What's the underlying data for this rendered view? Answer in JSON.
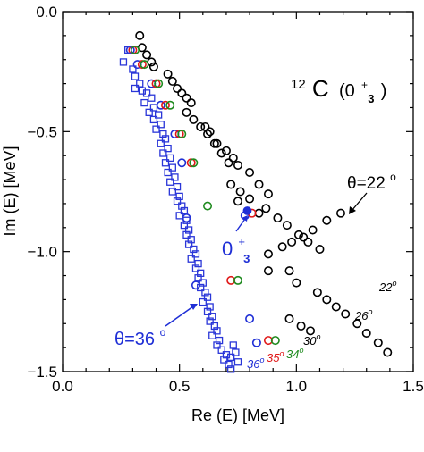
{
  "chart_data": {
    "type": "scatter",
    "title": "",
    "xlabel": "Re (E) [MeV]",
    "ylabel": "Im (E) [MeV]",
    "xlim": [
      0.0,
      1.5
    ],
    "ylim": [
      -1.5,
      0.0
    ],
    "x_ticks": [
      "0.0",
      "0.5",
      "1.0",
      "1.5"
    ],
    "y_ticks": [
      "0.0",
      "−0.5",
      "−1.0",
      "−1.5"
    ],
    "grid": false,
    "colors": {
      "black": "#000000",
      "blue": "#1f2fd6",
      "red": "#e01818",
      "green": "#1e8a1e",
      "squares": "#2a36d8"
    },
    "series": [
      {
        "points": [
          [
            0.33,
            -0.1
          ],
          [
            0.34,
            -0.15
          ],
          [
            0.36,
            -0.18
          ],
          [
            0.38,
            -0.21
          ],
          [
            0.39,
            -0.23
          ],
          [
            0.45,
            -0.26
          ],
          [
            0.47,
            -0.29
          ],
          [
            0.49,
            -0.32
          ],
          [
            0.51,
            -0.34
          ],
          [
            0.53,
            -0.36
          ],
          [
            0.55,
            -0.38
          ],
          [
            0.53,
            -0.42
          ],
          [
            0.56,
            -0.45
          ],
          [
            0.59,
            -0.48
          ],
          [
            0.62,
            -0.51
          ],
          [
            0.65,
            -0.55
          ],
          [
            0.68,
            -0.59
          ],
          [
            0.71,
            -0.63
          ],
          [
            0.61,
            -0.48
          ],
          [
            0.63,
            -0.5
          ],
          [
            0.66,
            -0.55
          ],
          [
            0.7,
            -0.58
          ],
          [
            0.73,
            -0.61
          ],
          [
            0.75,
            -0.64
          ],
          [
            0.8,
            -0.67
          ],
          [
            0.84,
            -0.72
          ],
          [
            0.88,
            -0.76
          ],
          [
            0.72,
            -0.72
          ],
          [
            0.76,
            -0.75
          ],
          [
            0.8,
            -0.78
          ],
          [
            0.87,
            -0.82
          ],
          [
            0.92,
            -0.86
          ],
          [
            0.96,
            -0.89
          ],
          [
            1.01,
            -0.93
          ],
          [
            1.05,
            -0.96
          ],
          [
            1.1,
            -0.99
          ],
          [
            0.75,
            -0.79
          ],
          [
            0.84,
            -0.84
          ],
          [
            1.19,
            -0.84
          ],
          [
            1.13,
            -0.87
          ],
          [
            1.07,
            -0.91
          ],
          [
            1.03,
            -0.94
          ],
          [
            0.98,
            -0.96
          ],
          [
            0.94,
            -0.98
          ],
          [
            0.88,
            -1.01
          ],
          [
            0.88,
            -1.08
          ],
          [
            0.97,
            -1.08
          ],
          [
            1.0,
            -1.13
          ],
          [
            1.09,
            -1.17
          ],
          [
            1.13,
            -1.2
          ],
          [
            1.17,
            -1.23
          ],
          [
            1.21,
            -1.26
          ],
          [
            1.26,
            -1.3
          ],
          [
            1.3,
            -1.34
          ],
          [
            1.35,
            -1.38
          ],
          [
            1.39,
            -1.42
          ],
          [
            0.97,
            -1.28
          ],
          [
            1.02,
            -1.31
          ],
          [
            1.06,
            -1.33
          ]
        ]
      },
      {
        "points": [
          [
            0.29,
            -0.16
          ],
          [
            0.32,
            -0.22
          ],
          [
            0.38,
            -0.3
          ],
          [
            0.42,
            -0.39
          ],
          [
            0.48,
            -0.51
          ],
          [
            0.51,
            -0.63
          ],
          [
            0.53,
            -0.86
          ],
          [
            0.78,
            -0.85
          ],
          [
            0.57,
            -1.14
          ],
          [
            0.8,
            -1.28
          ],
          [
            0.83,
            -1.38
          ]
        ]
      },
      {
        "points": [
          [
            0.3,
            -0.16
          ],
          [
            0.34,
            -0.22
          ],
          [
            0.4,
            -0.3
          ],
          [
            0.44,
            -0.39
          ],
          [
            0.5,
            -0.51
          ],
          [
            0.55,
            -0.63
          ],
          [
            0.81,
            -0.84
          ],
          [
            0.72,
            -1.12
          ],
          [
            0.88,
            -1.37
          ]
        ]
      },
      {
        "points": [
          [
            0.31,
            -0.16
          ],
          [
            0.35,
            -0.22
          ],
          [
            0.41,
            -0.3
          ],
          [
            0.46,
            -0.39
          ],
          [
            0.51,
            -0.51
          ],
          [
            0.56,
            -0.63
          ],
          [
            0.62,
            -0.81
          ],
          [
            0.75,
            -1.12
          ],
          [
            0.91,
            -1.37
          ]
        ]
      },
      {
        "points": [
          [
            0.28,
            -0.16
          ],
          [
            0.26,
            -0.21
          ],
          [
            0.3,
            -0.24
          ],
          [
            0.31,
            -0.27
          ],
          [
            0.33,
            -0.3
          ],
          [
            0.31,
            -0.32
          ],
          [
            0.34,
            -0.33
          ],
          [
            0.36,
            -0.34
          ],
          [
            0.38,
            -0.36
          ],
          [
            0.35,
            -0.38
          ],
          [
            0.39,
            -0.4
          ],
          [
            0.37,
            -0.42
          ],
          [
            0.41,
            -0.43
          ],
          [
            0.39,
            -0.45
          ],
          [
            0.42,
            -0.47
          ],
          [
            0.4,
            -0.49
          ],
          [
            0.43,
            -0.51
          ],
          [
            0.44,
            -0.53
          ],
          [
            0.42,
            -0.55
          ],
          [
            0.45,
            -0.57
          ],
          [
            0.43,
            -0.59
          ],
          [
            0.46,
            -0.61
          ],
          [
            0.44,
            -0.63
          ],
          [
            0.47,
            -0.65
          ],
          [
            0.45,
            -0.67
          ],
          [
            0.48,
            -0.69
          ],
          [
            0.46,
            -0.71
          ],
          [
            0.49,
            -0.73
          ],
          [
            0.47,
            -0.75
          ],
          [
            0.5,
            -0.77
          ],
          [
            0.49,
            -0.79
          ],
          [
            0.51,
            -0.81
          ],
          [
            0.52,
            -0.83
          ],
          [
            0.5,
            -0.85
          ],
          [
            0.53,
            -0.87
          ],
          [
            0.52,
            -0.89
          ],
          [
            0.54,
            -0.91
          ],
          [
            0.53,
            -0.93
          ],
          [
            0.55,
            -0.95
          ],
          [
            0.54,
            -0.97
          ],
          [
            0.56,
            -0.99
          ],
          [
            0.57,
            -1.01
          ],
          [
            0.55,
            -1.03
          ],
          [
            0.58,
            -1.05
          ],
          [
            0.57,
            -1.07
          ],
          [
            0.59,
            -1.09
          ],
          [
            0.58,
            -1.11
          ],
          [
            0.6,
            -1.13
          ],
          [
            0.59,
            -1.15
          ],
          [
            0.61,
            -1.17
          ],
          [
            0.62,
            -1.19
          ],
          [
            0.6,
            -1.21
          ],
          [
            0.63,
            -1.23
          ],
          [
            0.62,
            -1.25
          ],
          [
            0.64,
            -1.27
          ],
          [
            0.63,
            -1.29
          ],
          [
            0.65,
            -1.31
          ],
          [
            0.66,
            -1.33
          ],
          [
            0.64,
            -1.35
          ],
          [
            0.67,
            -1.37
          ],
          [
            0.66,
            -1.39
          ],
          [
            0.68,
            -1.41
          ],
          [
            0.7,
            -1.43
          ],
          [
            0.69,
            -1.45
          ],
          [
            0.71,
            -1.47
          ],
          [
            0.72,
            -1.49
          ],
          [
            0.73,
            -1.39
          ],
          [
            0.74,
            -1.42
          ],
          [
            0.75,
            -1.46
          ],
          [
            0.72,
            -1.44
          ]
        ]
      }
    ],
    "highlight_point": [
      0.79,
      -0.83
    ],
    "annotations": [
      {
        "id": "title",
        "nucleus_mass": "12",
        "nucleus_symbol": "C",
        "state": "(0",
        "state_sup": "+",
        "state_sub": "3",
        "state_close": ")"
      },
      {
        "id": "theta22",
        "text": "θ=22",
        "degree": "o"
      },
      {
        "id": "theta36",
        "text": "θ=36",
        "degree": "o"
      },
      {
        "id": "state",
        "text": "0",
        "sup": "+",
        "sub": "3"
      },
      {
        "id": "deg22",
        "text": "22",
        "degree": "o"
      },
      {
        "id": "deg26",
        "text": "26",
        "degree": "o"
      },
      {
        "id": "deg30",
        "text": "30",
        "degree": "o"
      },
      {
        "id": "deg34",
        "text": "34",
        "degree": "o"
      },
      {
        "id": "deg35",
        "text": "35",
        "degree": "o"
      },
      {
        "id": "deg36",
        "text": "36",
        "degree": "o"
      }
    ]
  }
}
